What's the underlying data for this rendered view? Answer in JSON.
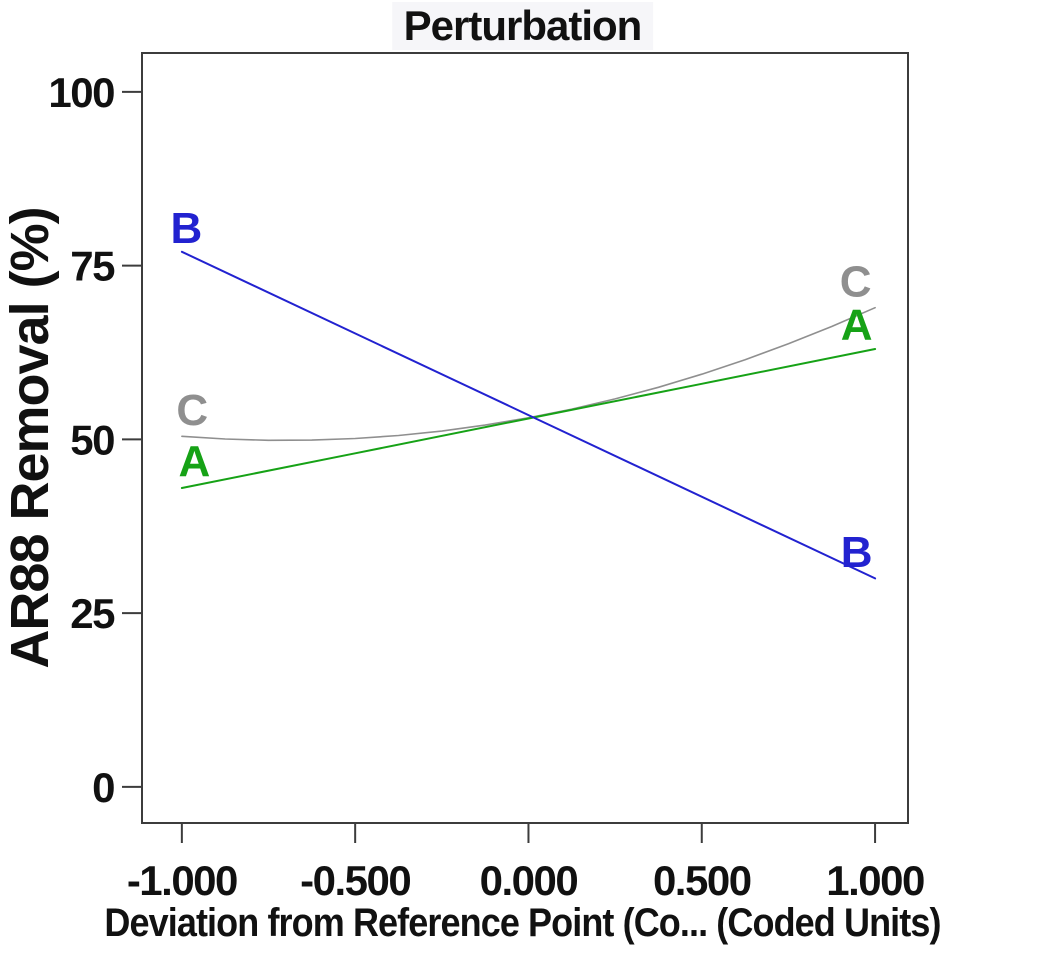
{
  "chart_data": {
    "type": "line",
    "title": "Perturbation",
    "xlabel": "Deviation from Reference Point (Co... (Coded Units)",
    "ylabel": "AR88 Removal (%)",
    "x_tick_values": [
      -1,
      -0.5,
      0,
      0.5,
      1
    ],
    "x_tick_labels": [
      "-1.000",
      "-0.500",
      "0.000",
      "0.500",
      "1.000"
    ],
    "y_tick_values": [
      0,
      25,
      50,
      75,
      100
    ],
    "y_tick_labels": [
      "0",
      "25",
      "50",
      "75",
      "100"
    ],
    "xlim": [
      -1.115,
      1.095
    ],
    "ylim": [
      -5.2,
      105.6
    ],
    "grid": false,
    "legend": "inline-end-labels",
    "axis_color": "#3c3c3c",
    "text_color": "#111111",
    "title_background": "#f6f6f9",
    "series": [
      {
        "name": "C",
        "color": "#8f8f8f",
        "line_width": 1.6,
        "shape": "quadratic",
        "points": [
          [
            -1,
            50.45
          ],
          [
            -0.875,
            50.06
          ],
          [
            -0.75,
            49.87
          ],
          [
            -0.625,
            49.9
          ],
          [
            -0.5,
            50.13
          ],
          [
            -0.375,
            50.56
          ],
          [
            -0.25,
            51.2
          ],
          [
            -0.125,
            52.05
          ],
          [
            0,
            53.1
          ],
          [
            0.125,
            54.36
          ],
          [
            0.25,
            55.83
          ],
          [
            0.375,
            57.5
          ],
          [
            0.5,
            59.38
          ],
          [
            0.625,
            61.46
          ],
          [
            0.75,
            63.75
          ],
          [
            0.875,
            66.25
          ],
          [
            1,
            68.95
          ]
        ],
        "end_labels": [
          {
            "text": "C",
            "x": -0.97,
            "y": 54.2
          },
          {
            "text": "C",
            "x": 0.944,
            "y": 72.7
          }
        ]
      },
      {
        "name": "A",
        "color": "#16a216",
        "line_width": 2,
        "shape": "linear",
        "points": [
          [
            -1,
            43
          ],
          [
            -0.5,
            48
          ],
          [
            0,
            53
          ],
          [
            0.5,
            58
          ],
          [
            1,
            63
          ]
        ],
        "end_labels": [
          {
            "text": "A",
            "x": -0.964,
            "y": 46.9
          },
          {
            "text": "A",
            "x": 0.947,
            "y": 66.5
          }
        ]
      },
      {
        "name": "B",
        "color": "#2222d0",
        "line_width": 2,
        "shape": "linear",
        "points": [
          [
            -1,
            77
          ],
          [
            0,
            53.5
          ],
          [
            1,
            30
          ]
        ],
        "end_labels": [
          {
            "text": "B",
            "x": -0.987,
            "y": 80.4
          },
          {
            "text": "B",
            "x": 0.947,
            "y": 33.8
          }
        ]
      }
    ]
  }
}
